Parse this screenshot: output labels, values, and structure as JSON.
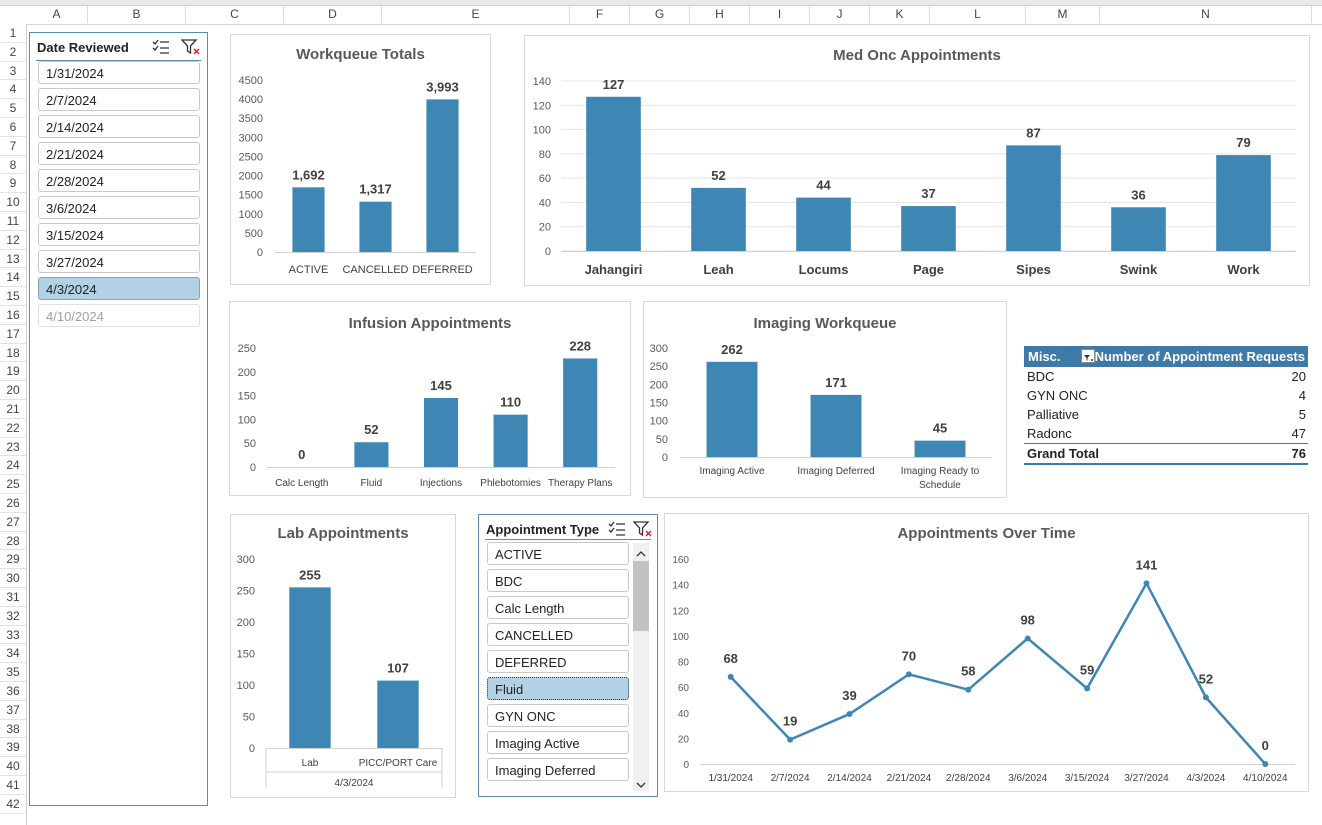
{
  "columns": [
    "A",
    "B",
    "C",
    "D",
    "E",
    "F",
    "G",
    "H",
    "I",
    "J",
    "K",
    "L",
    "M",
    "N"
  ],
  "rows": [
    "1",
    "2",
    "3",
    "4",
    "5",
    "6",
    "7",
    "8",
    "9",
    "10",
    "11",
    "12",
    "13",
    "14",
    "15",
    "16",
    "17",
    "18",
    "19",
    "20",
    "21",
    "22",
    "23",
    "24",
    "25",
    "26",
    "27",
    "28",
    "29",
    "30",
    "31",
    "32",
    "33",
    "34",
    "35",
    "36",
    "37",
    "38",
    "39",
    "40",
    "41",
    "42"
  ],
  "date_slicer": {
    "title": "Date Reviewed",
    "items": [
      {
        "label": "1/31/2024",
        "state": "normal"
      },
      {
        "label": "2/7/2024",
        "state": "normal"
      },
      {
        "label": "2/14/2024",
        "state": "normal"
      },
      {
        "label": "2/21/2024",
        "state": "normal"
      },
      {
        "label": "2/28/2024",
        "state": "normal"
      },
      {
        "label": "3/6/2024",
        "state": "normal"
      },
      {
        "label": "3/15/2024",
        "state": "normal"
      },
      {
        "label": "3/27/2024",
        "state": "normal"
      },
      {
        "label": "4/3/2024",
        "state": "selected"
      },
      {
        "label": "4/10/2024",
        "state": "dim"
      }
    ]
  },
  "type_slicer": {
    "title": "Appointment Type",
    "items": [
      {
        "label": "ACTIVE",
        "state": "normal"
      },
      {
        "label": "BDC",
        "state": "normal"
      },
      {
        "label": "Calc Length",
        "state": "normal"
      },
      {
        "label": "CANCELLED",
        "state": "normal"
      },
      {
        "label": "DEFERRED",
        "state": "normal"
      },
      {
        "label": "Fluid",
        "state": "selected"
      },
      {
        "label": "GYN ONC",
        "state": "normal"
      },
      {
        "label": "Imaging Active",
        "state": "normal"
      },
      {
        "label": "Imaging Deferred",
        "state": "normal"
      }
    ]
  },
  "pivot": {
    "header": {
      "label": "Misc.",
      "value_label": "Number of Appointment Requests"
    },
    "rows": [
      {
        "label": "BDC",
        "value": "20"
      },
      {
        "label": "GYN ONC",
        "value": "4"
      },
      {
        "label": "Palliative",
        "value": "5"
      },
      {
        "label": "Radonc",
        "value": "47"
      }
    ],
    "total": {
      "label": "Grand Total",
      "value": "76"
    }
  },
  "colors": {
    "bar": "#3e87b5",
    "line": "#3e87b5",
    "slicer_selected": "#b2d1e4",
    "pivot_header": "#3e7aa8"
  },
  "chart_data": [
    {
      "id": "workqueue",
      "type": "bar",
      "title": "Workqueue Totals",
      "categories": [
        "ACTIVE",
        "CANCELLED",
        "DEFERRED"
      ],
      "values": [
        1692,
        1317,
        3993
      ],
      "labels": [
        "1,692",
        "1,317",
        "3,993"
      ],
      "ylim": [
        0,
        4500
      ],
      "yticks": [
        0,
        500,
        1000,
        1500,
        2000,
        2500,
        3000,
        3500,
        4000,
        4500
      ]
    },
    {
      "id": "medonc",
      "type": "bar",
      "title": "Med Onc Appointments",
      "categories": [
        "Jahangiri",
        "Leah",
        "Locums",
        "Page",
        "Sipes",
        "Swink",
        "Work"
      ],
      "values": [
        127,
        52,
        44,
        37,
        87,
        36,
        79
      ],
      "labels": [
        "127",
        "52",
        "44",
        "37",
        "87",
        "36",
        "79"
      ],
      "ylim": [
        0,
        140
      ],
      "yticks": [
        0,
        20,
        40,
        60,
        80,
        100,
        120,
        140
      ]
    },
    {
      "id": "infusion",
      "type": "bar",
      "title": "Infusion Appointments",
      "categories": [
        "Calc Length",
        "Fluid",
        "Injections",
        "Phlebotomies",
        "Therapy Plans"
      ],
      "values": [
        0,
        52,
        145,
        110,
        228
      ],
      "labels": [
        "0",
        "52",
        "145",
        "110",
        "228"
      ],
      "ylim": [
        0,
        250
      ],
      "yticks": [
        0,
        50,
        100,
        150,
        200,
        250
      ]
    },
    {
      "id": "imaging",
      "type": "bar",
      "title": "Imaging Workqueue",
      "categories": [
        "Imaging Active",
        "Imaging Deferred",
        "Imaging Ready to Schedule"
      ],
      "values": [
        262,
        171,
        45
      ],
      "labels": [
        "262",
        "171",
        "45"
      ],
      "ylim": [
        0,
        300
      ],
      "yticks": [
        0,
        50,
        100,
        150,
        200,
        250,
        300
      ]
    },
    {
      "id": "lab",
      "type": "bar",
      "title": "Lab Appointments",
      "categories": [
        "Lab",
        "PICC/PORT Care"
      ],
      "values": [
        255,
        107
      ],
      "labels": [
        "255",
        "107"
      ],
      "ylim": [
        0,
        300
      ],
      "yticks": [
        0,
        50,
        100,
        150,
        200,
        250,
        300
      ],
      "group_label": "4/3/2024"
    },
    {
      "id": "overtime",
      "type": "line",
      "title": "Appointments Over Time",
      "categories": [
        "1/31/2024",
        "2/7/2024",
        "2/14/2024",
        "2/21/2024",
        "2/28/2024",
        "3/6/2024",
        "3/15/2024",
        "3/27/2024",
        "4/3/2024",
        "4/10/2024"
      ],
      "values": [
        68,
        19,
        39,
        70,
        58,
        98,
        59,
        141,
        52,
        0
      ],
      "labels": [
        "68",
        "19",
        "39",
        "70",
        "58",
        "98",
        "59",
        "141",
        "52",
        "0"
      ],
      "ylim": [
        0,
        160
      ],
      "yticks": [
        0,
        20,
        40,
        60,
        80,
        100,
        120,
        140,
        160
      ]
    }
  ]
}
